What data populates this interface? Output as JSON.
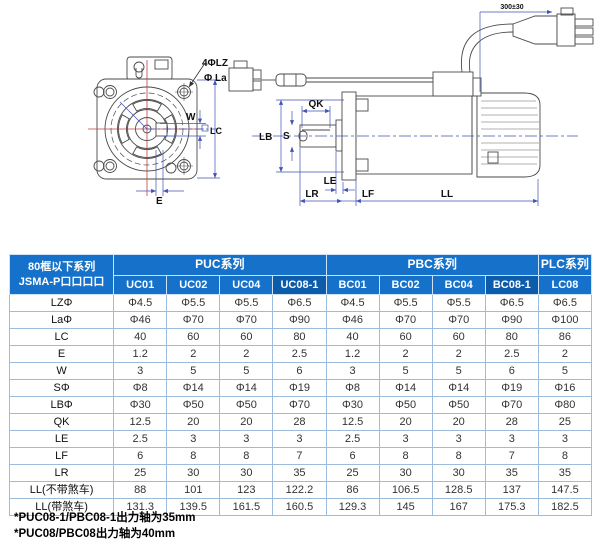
{
  "drawing": {
    "front_view": {
      "hole_label": "4ΦLZ",
      "bolt_circle_label": "Φ La",
      "keyway_width_label": "W",
      "frame_label": "LC",
      "offset_label": "E"
    },
    "side_view": {
      "key_length_label": "QK",
      "pilot_label": "LB",
      "shaft_label": "S",
      "le_label": "LE",
      "lr_label": "LR",
      "lf_label": "LF",
      "length_label": "LL",
      "cable_length_label": "300±30"
    }
  },
  "table": {
    "title_line1": "80框以下系列",
    "title_line2": "JSMA-P口口口口",
    "groups": [
      {
        "label": "PUC系列",
        "span": 4
      },
      {
        "label": "PBC系列",
        "span": 4
      },
      {
        "label": "PLC系列",
        "span": 1
      }
    ],
    "models": [
      "UC01",
      "UC02",
      "UC04",
      "UC08-1",
      "BC01",
      "BC02",
      "BC04",
      "BC08-1",
      "LC08"
    ],
    "highlight_models": [
      "UC08-1",
      "BC08-1"
    ],
    "rows": [
      {
        "label": "LZΦ",
        "values": [
          "Φ4.5",
          "Φ5.5",
          "Φ5.5",
          "Φ6.5",
          "Φ4.5",
          "Φ5.5",
          "Φ5.5",
          "Φ6.5",
          "Φ6.5"
        ]
      },
      {
        "label": "LaΦ",
        "values": [
          "Φ46",
          "Φ70",
          "Φ70",
          "Φ90",
          "Φ46",
          "Φ70",
          "Φ70",
          "Φ90",
          "Φ100"
        ]
      },
      {
        "label": "LC",
        "values": [
          "40",
          "60",
          "60",
          "80",
          "40",
          "60",
          "60",
          "80",
          "86"
        ]
      },
      {
        "label": "E",
        "values": [
          "1.2",
          "2",
          "2",
          "2.5",
          "1.2",
          "2",
          "2",
          "2.5",
          "2"
        ]
      },
      {
        "label": "W",
        "values": [
          "3",
          "5",
          "5",
          "6",
          "3",
          "5",
          "5",
          "6",
          "5"
        ]
      },
      {
        "label": "SΦ",
        "values": [
          "Φ8",
          "Φ14",
          "Φ14",
          "Φ19",
          "Φ8",
          "Φ14",
          "Φ14",
          "Φ19",
          "Φ16"
        ]
      },
      {
        "label": "LBΦ",
        "values": [
          "Φ30",
          "Φ50",
          "Φ50",
          "Φ70",
          "Φ30",
          "Φ50",
          "Φ50",
          "Φ70",
          "Φ80"
        ]
      },
      {
        "label": "QK",
        "values": [
          "12.5",
          "20",
          "20",
          "28",
          "12.5",
          "20",
          "20",
          "28",
          "25"
        ]
      },
      {
        "label": "LE",
        "values": [
          "2.5",
          "3",
          "3",
          "3",
          "2.5",
          "3",
          "3",
          "3",
          "3"
        ]
      },
      {
        "label": "LF",
        "values": [
          "6",
          "8",
          "8",
          "7",
          "6",
          "8",
          "8",
          "7",
          "8"
        ]
      },
      {
        "label": "LR",
        "values": [
          "25",
          "30",
          "30",
          "35",
          "25",
          "30",
          "30",
          "35",
          "35"
        ]
      },
      {
        "label": "LL(不带煞车)",
        "values": [
          "88",
          "101",
          "123",
          "122.2",
          "86",
          "106.5",
          "128.5",
          "137",
          "147.5"
        ]
      },
      {
        "label": "LL(带煞车)",
        "values": [
          "131.3",
          "139.5",
          "161.5",
          "160.5",
          "129.3",
          "145",
          "167",
          "175.3",
          "182.5"
        ]
      }
    ]
  },
  "footnotes": [
    "*PUC08-1/PBC08-1出力轴为35mm",
    "*PUC08/PBC08出力轴为40mm"
  ],
  "colors": {
    "header_blue": "#1571c9",
    "header_dark_blue": "#0d5cab",
    "grid_line": "#9bbcdf",
    "dimension_line": "#4153b4",
    "center_line_red": "#c04040",
    "drawing_line": "#4a4a4a"
  }
}
